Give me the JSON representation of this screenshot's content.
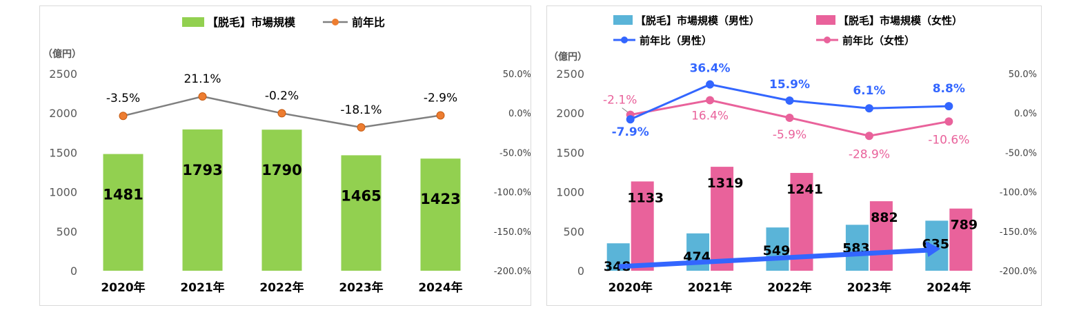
{
  "chart_data": [
    {
      "type": "bar",
      "categories": [
        "2020年",
        "2021年",
        "2022年",
        "2023年",
        "2024年"
      ],
      "unit_label": "（億円）",
      "series": [
        {
          "name": "【脱毛】市場規模",
          "kind": "bar",
          "axis": "left",
          "color": "#92d050",
          "values": [
            1481,
            1793,
            1790,
            1465,
            1423
          ],
          "labels": [
            "1481",
            "1793",
            "1790",
            "1465",
            "1423"
          ]
        },
        {
          "name": "前年比",
          "kind": "line",
          "axis": "right",
          "color": "#ed7d31",
          "line_color": "#7f7f7f",
          "values": [
            -3.5,
            21.1,
            -0.2,
            -18.1,
            -2.9
          ],
          "labels": [
            "-3.5%",
            "21.1%",
            "-0.2%",
            "-18.1%",
            "-2.9%"
          ]
        }
      ],
      "ylim": [
        0,
        2500
      ],
      "yticks": [
        "0",
        "500",
        "1000",
        "1500",
        "2000",
        "2500"
      ],
      "y2lim": [
        -200,
        50
      ],
      "y2ticks": [
        "-200.0%",
        "-150.0%",
        "-100.0%",
        "-50.0%",
        "0.0%",
        "50.0%"
      ],
      "legend_position": "top",
      "grid": false
    },
    {
      "type": "bar",
      "categories": [
        "2020年",
        "2021年",
        "2022年",
        "2023年",
        "2024年"
      ],
      "unit_label": "（億円）",
      "series": [
        {
          "name": "【脱毛】市場規模（男性）",
          "kind": "bar",
          "axis": "left",
          "color": "#5ab4d8",
          "values": [
            348,
            474,
            549,
            583,
            635
          ],
          "labels": [
            "348",
            "474",
            "549",
            "583",
            "635"
          ]
        },
        {
          "name": "【脱毛】市場規模（女性）",
          "kind": "bar",
          "axis": "left",
          "color": "#e9629b",
          "values": [
            1133,
            1319,
            1241,
            882,
            789
          ],
          "labels": [
            "1133",
            "1319",
            "1241",
            "882",
            "789"
          ]
        },
        {
          "name": "前年比（男性）",
          "kind": "line",
          "axis": "right",
          "color": "#3366ff",
          "values": [
            -7.9,
            36.4,
            15.9,
            6.1,
            8.8
          ],
          "labels": [
            "-7.9%",
            "36.4%",
            "15.9%",
            "6.1%",
            "8.8%"
          ]
        },
        {
          "name": "前年比（女性）",
          "kind": "line",
          "axis": "right",
          "color": "#e9629b",
          "values": [
            -2.1,
            16.4,
            -5.9,
            -28.9,
            -10.6
          ],
          "labels": [
            "-2.1%",
            "16.4%",
            "-5.9%",
            "-28.9%",
            "-10.6%"
          ]
        }
      ],
      "ylim": [
        0,
        2500
      ],
      "yticks": [
        "0",
        "500",
        "1000",
        "1500",
        "2000",
        "2500"
      ],
      "y2lim": [
        -200,
        50
      ],
      "y2ticks": [
        "-200.0%",
        "-150.0%",
        "-100.0%",
        "-50.0%",
        "0.0%",
        "50.0%"
      ],
      "legend_position": "top",
      "grid": false,
      "trend_arrow_color": "#3366ff"
    }
  ]
}
